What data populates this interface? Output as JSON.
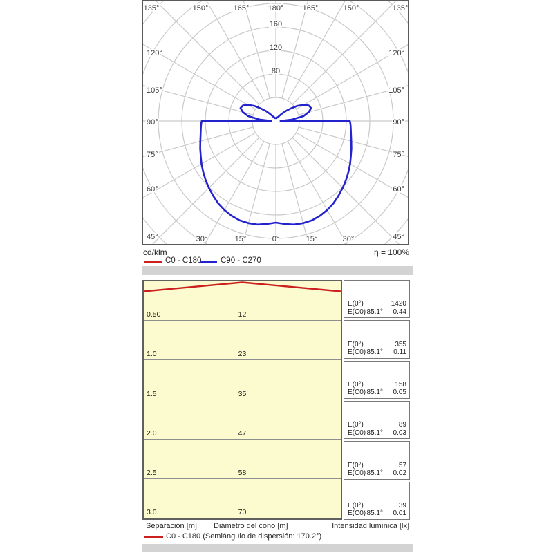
{
  "polar_chart": {
    "units_label": "cd/klm",
    "efficiency_label": "η = 100%",
    "legend": [
      {
        "label": "C0 - C180",
        "color": "#cc2020"
      },
      {
        "label": "C90 - C270",
        "color": "#2323cd"
      }
    ],
    "angle_labels": {
      "top": [
        "135°",
        "150°",
        "165°",
        "180°",
        "165°",
        "150°",
        "135°"
      ],
      "left": [
        "120°",
        "105°",
        "90°",
        "75°",
        "60°",
        "45°"
      ],
      "right": [
        "120°",
        "105°",
        "90°",
        "75°",
        "60°",
        "45°"
      ],
      "bottom": [
        "30°",
        "15°",
        "0°",
        "15°",
        "30°"
      ]
    },
    "radial_labels": [
      "80",
      "120",
      "160"
    ]
  },
  "chart_data": [
    {
      "type": "polar-photometric",
      "title": "Luminous intensity distribution curve",
      "units": "cd/klm",
      "efficiency_percent": 100,
      "ring_step": 40,
      "ring_values": [
        40,
        80,
        120,
        160,
        200,
        240,
        280
      ],
      "angle_grid_step_deg": 15,
      "series": [
        {
          "name": "C0 - C180",
          "color": "#cc2020",
          "gamma_deg": [
            0,
            5,
            10,
            15,
            20,
            25,
            30,
            35,
            40,
            45,
            50,
            55,
            60,
            65,
            70,
            75,
            80,
            85,
            88,
            90,
            91,
            95,
            100,
            105,
            110,
            115,
            120,
            125,
            130,
            135,
            140,
            145,
            150,
            155,
            160,
            165,
            170,
            175,
            180
          ],
          "intensity": [
            173,
            176,
            179,
            180,
            180,
            178,
            175,
            171,
            166,
            161,
            156,
            151,
            146,
            141,
            137,
            133,
            130,
            128,
            127,
            126,
            8,
            28,
            48,
            58,
            64,
            62,
            55,
            45,
            33,
            24,
            16,
            11,
            8,
            7,
            6,
            5,
            5,
            5,
            5
          ]
        },
        {
          "name": "C90 - C270",
          "color": "#2323cd",
          "gamma_deg": [
            0,
            5,
            10,
            15,
            20,
            25,
            30,
            35,
            40,
            45,
            50,
            55,
            60,
            65,
            70,
            75,
            80,
            85,
            88,
            90,
            91,
            95,
            100,
            105,
            110,
            115,
            120,
            125,
            130,
            135,
            140,
            145,
            150,
            155,
            160,
            165,
            170,
            175,
            180
          ],
          "intensity": [
            173,
            176,
            179,
            180,
            180,
            178,
            175,
            171,
            166,
            161,
            156,
            151,
            146,
            141,
            137,
            133,
            130,
            128,
            127,
            126,
            8,
            28,
            48,
            58,
            64,
            62,
            55,
            45,
            33,
            24,
            16,
            11,
            8,
            7,
            6,
            5,
            5,
            5,
            5
          ]
        }
      ]
    },
    {
      "type": "cone-diagram",
      "beam_half_angle_deg": 85.1,
      "dispersion_note": "Semiángulo de dispersión: 170.2°",
      "rows": [
        {
          "separation": "0.50",
          "diameter": "12",
          "e0_label": "E(0°)",
          "e0": "1420",
          "ec0_label": "E(C0)",
          "ec0_angle": "85.1°",
          "ec0": "0.44"
        },
        {
          "separation": "1.0",
          "diameter": "23",
          "e0_label": "E(0°)",
          "e0": "355",
          "ec0_label": "E(C0)",
          "ec0_angle": "85.1°",
          "ec0": "0.11"
        },
        {
          "separation": "1.5",
          "diameter": "35",
          "e0_label": "E(0°)",
          "e0": "158",
          "ec0_label": "E(C0)",
          "ec0_angle": "85.1°",
          "ec0": "0.05"
        },
        {
          "separation": "2.0",
          "diameter": "47",
          "e0_label": "E(0°)",
          "e0": "89",
          "ec0_label": "E(C0)",
          "ec0_angle": "85.1°",
          "ec0": "0.03"
        },
        {
          "separation": "2.5",
          "diameter": "58",
          "e0_label": "E(0°)",
          "e0": "57",
          "ec0_label": "E(C0)",
          "ec0_angle": "85.1°",
          "ec0": "0.02"
        },
        {
          "separation": "3.0",
          "diameter": "70",
          "e0_label": "E(0°)",
          "e0": "39",
          "ec0_label": "E(C0)",
          "ec0_angle": "85.1°",
          "ec0": "0.01"
        }
      ]
    }
  ],
  "cone_table": {
    "footer": {
      "separation": "Separación [m]",
      "diameter": "Diámetro del cono [m]",
      "intensity": "Intensidad lumínica [lx]"
    },
    "legend_label": "C0 - C180 (Semiángulo de dispersión: 170.2°)"
  }
}
